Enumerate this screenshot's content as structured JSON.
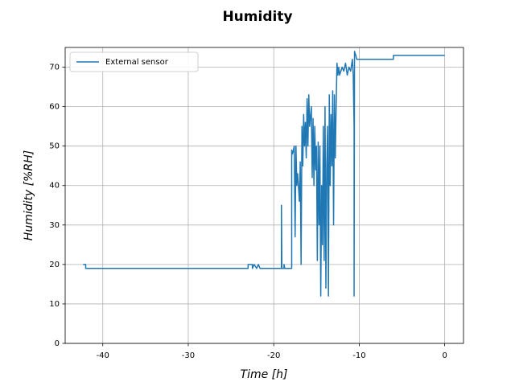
{
  "chart_data": {
    "type": "line",
    "title": "Humidity",
    "xlabel": "Time [h]",
    "ylabel": "Humidity [%RH]",
    "x": [
      -42.3,
      -42.0,
      -42.0,
      -23.0,
      -23.0,
      -22.5,
      -22.5,
      -22.3,
      -22.0,
      -21.8,
      -21.6,
      -19.1,
      -19.1,
      -19.05,
      -18.8,
      -18.8,
      -18.7,
      -17.9,
      -17.9,
      -17.8,
      -17.6,
      -17.5,
      -17.4,
      -17.3,
      -17.2,
      -17.0,
      -16.9,
      -16.8,
      -16.7,
      -16.6,
      -16.5,
      -16.4,
      -16.3,
      -16.2,
      -16.1,
      -16.0,
      -15.9,
      -15.8,
      -15.6,
      -15.5,
      -15.4,
      -15.3,
      -15.2,
      -15.1,
      -15.0,
      -14.9,
      -14.8,
      -14.7,
      -14.6,
      -14.5,
      -14.4,
      -14.3,
      -14.2,
      -14.1,
      -14.0,
      -13.9,
      -13.8,
      -13.7,
      -13.6,
      -13.5,
      -13.4,
      -13.3,
      -13.2,
      -13.1,
      -13.0,
      -12.9,
      -12.8,
      -12.7,
      -12.6,
      -12.5,
      -12.4,
      -12.3,
      -12.0,
      -11.8,
      -11.6,
      -11.4,
      -11.2,
      -11.0,
      -10.8,
      -10.7,
      -10.6,
      -10.6,
      -10.55,
      -10.4,
      -10.3,
      -6.0,
      -6.0,
      0.0
    ],
    "series": [
      {
        "name": "External sensor",
        "color": "#1f77b4",
        "values": [
          20,
          20,
          19,
          19,
          20,
          20,
          19,
          20,
          19,
          20,
          19,
          19,
          35,
          19,
          19,
          20,
          19,
          19,
          49,
          48,
          50,
          27,
          50,
          40,
          43,
          36,
          46,
          20,
          55,
          45,
          58,
          50,
          56,
          47,
          62,
          50,
          63,
          55,
          60,
          42,
          57,
          40,
          55,
          44,
          50,
          21,
          51,
          30,
          50,
          12,
          40,
          25,
          55,
          21,
          60,
          14,
          45,
          55,
          12,
          63,
          40,
          58,
          45,
          64,
          30,
          63,
          47,
          60,
          71,
          68,
          70,
          68,
          70,
          69,
          71,
          68,
          70,
          69,
          72,
          68,
          55,
          12,
          74,
          73,
          72,
          72,
          73,
          73
        ]
      }
    ],
    "xlim": [
      -44.4,
      2.2
    ],
    "ylim": [
      0,
      75
    ],
    "xticks": [
      -40,
      -30,
      -20,
      -10,
      0
    ],
    "yticks": [
      0,
      10,
      20,
      30,
      40,
      50,
      60,
      70
    ],
    "grid": true,
    "legend": "upper left"
  }
}
